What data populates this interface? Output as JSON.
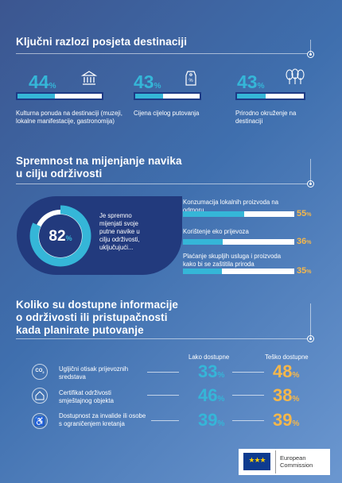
{
  "section1": {
    "title": "Ključni razlozi posjeta destinaciji",
    "items": [
      {
        "pct": "44",
        "value": 0.44,
        "icon": "museum-icon",
        "label": "Kulturna ponuda na destinaciji (muzeji, lokalne manifestacije, gastronomija)"
      },
      {
        "pct": "43",
        "value": 0.43,
        "icon": "price-tag-icon",
        "label": "Cijena cijelog putovanja"
      },
      {
        "pct": "43",
        "value": 0.43,
        "icon": "trees-icon",
        "label": "Prirodno okruženje na destinaciji"
      }
    ]
  },
  "section2": {
    "title_line1": "Spremnost na mijenjanje navika",
    "title_line2": "u cilju održivosti",
    "circle_pct": "82",
    "circle_value": 0.82,
    "circle_text": "Je spremno mijenjati svoje putne navike u cilju održivosti, uključujući...",
    "items": [
      {
        "label": "Konzumacija lokalnih proizvoda na odmoru",
        "pct": "55",
        "value": 0.55
      },
      {
        "label": "Korištenje eko prijevoza",
        "pct": "36",
        "value": 0.36
      },
      {
        "label": "Plaćanje skupljih usluga i proizvoda kako bi se zaštitila priroda",
        "pct": "35",
        "value": 0.35
      }
    ]
  },
  "section3": {
    "title_line1": "Koliko su dostupne informacije",
    "title_line2": "o održivosti ili pristupačnosti",
    "title_line3": "kada planirate putovanje",
    "col_easy": "Lako dostupne",
    "col_hard": "Teško dostupne",
    "rows": [
      {
        "icon": "co2-icon",
        "label": "Ugljični otisak prijevoznih sredstava",
        "easy": "33",
        "hard": "48"
      },
      {
        "icon": "eco-house-icon",
        "label": "Certifikat održivosti smještajnog objekta",
        "easy": "46",
        "hard": "38"
      },
      {
        "icon": "wheelchair-icon",
        "label": "Dostupnost za invalide ili osobe s ograničenjem kretanja",
        "easy": "39",
        "hard": "39"
      }
    ]
  },
  "footer": {
    "org_line1": "European",
    "org_line2": "Commission"
  },
  "colors": {
    "teal": "#35b6d8",
    "orange": "#f5b74b",
    "navy": "#223a7d"
  },
  "pct_symbol": "%"
}
